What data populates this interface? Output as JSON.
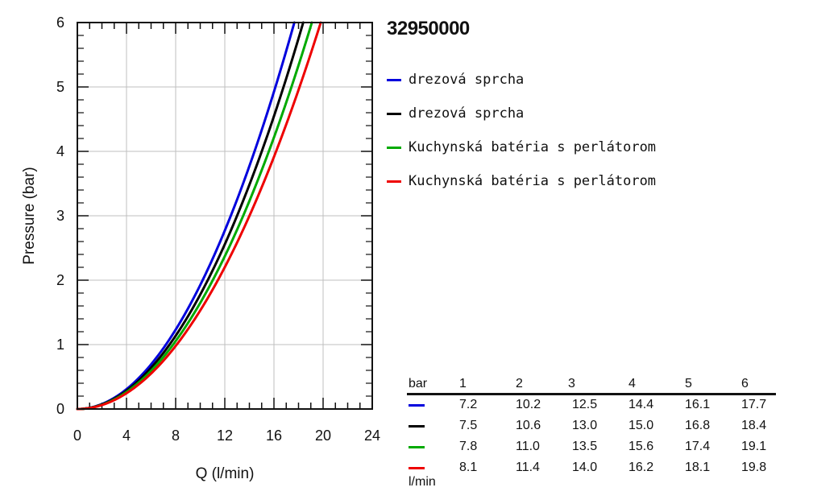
{
  "chart_data": {
    "type": "line",
    "title": "32950000",
    "xlabel": "Q (l/min)",
    "ylabel": "Pressure (bar)",
    "xlim": [
      0,
      24
    ],
    "ylim": [
      0,
      6
    ],
    "x_ticks": [
      "0",
      "4",
      "8",
      "12",
      "16",
      "20",
      "24"
    ],
    "y_ticks": [
      "0",
      "1",
      "2",
      "3",
      "4",
      "5",
      "6"
    ],
    "grid": true,
    "legend_position": "right-top",
    "series": [
      {
        "name": "drezová sprcha",
        "color": "#0000dd",
        "points": [
          [
            0,
            0
          ],
          [
            7.2,
            1
          ],
          [
            10.2,
            2
          ],
          [
            12.5,
            3
          ],
          [
            14.4,
            4
          ],
          [
            16.1,
            5
          ],
          [
            17.7,
            6
          ]
        ]
      },
      {
        "name": "drezová sprcha",
        "color": "#000000",
        "points": [
          [
            0,
            0
          ],
          [
            7.5,
            1
          ],
          [
            10.6,
            2
          ],
          [
            13.0,
            3
          ],
          [
            15.0,
            4
          ],
          [
            16.8,
            5
          ],
          [
            18.4,
            6
          ]
        ]
      },
      {
        "name": "Kuchynská batéria s perlátorom",
        "color": "#00aa00",
        "points": [
          [
            0,
            0
          ],
          [
            7.8,
            1
          ],
          [
            11.0,
            2
          ],
          [
            13.5,
            3
          ],
          [
            15.6,
            4
          ],
          [
            17.4,
            5
          ],
          [
            19.1,
            6
          ]
        ]
      },
      {
        "name": "Kuchynská batéria s perlátorom",
        "color": "#ee0000",
        "points": [
          [
            0,
            0
          ],
          [
            8.1,
            1
          ],
          [
            11.4,
            2
          ],
          [
            14.0,
            3
          ],
          [
            16.2,
            4
          ],
          [
            18.1,
            5
          ],
          [
            19.8,
            6
          ]
        ]
      }
    ]
  },
  "flow_table": {
    "header_label": "bar",
    "pressures": [
      "1",
      "2",
      "3",
      "4",
      "5",
      "6"
    ],
    "unit_label": "l/min",
    "rows": [
      {
        "color": "#0000dd",
        "values": [
          "7.2",
          "10.2",
          "12.5",
          "14.4",
          "16.1",
          "17.7"
        ]
      },
      {
        "color": "#000000",
        "values": [
          "7.5",
          "10.6",
          "13.0",
          "15.0",
          "16.8",
          "18.4"
        ]
      },
      {
        "color": "#00aa00",
        "values": [
          "7.8",
          "11.0",
          "13.5",
          "15.6",
          "17.4",
          "19.1"
        ]
      },
      {
        "color": "#ee0000",
        "values": [
          "8.1",
          "11.4",
          "14.0",
          "16.2",
          "18.1",
          "19.8"
        ]
      }
    ]
  }
}
